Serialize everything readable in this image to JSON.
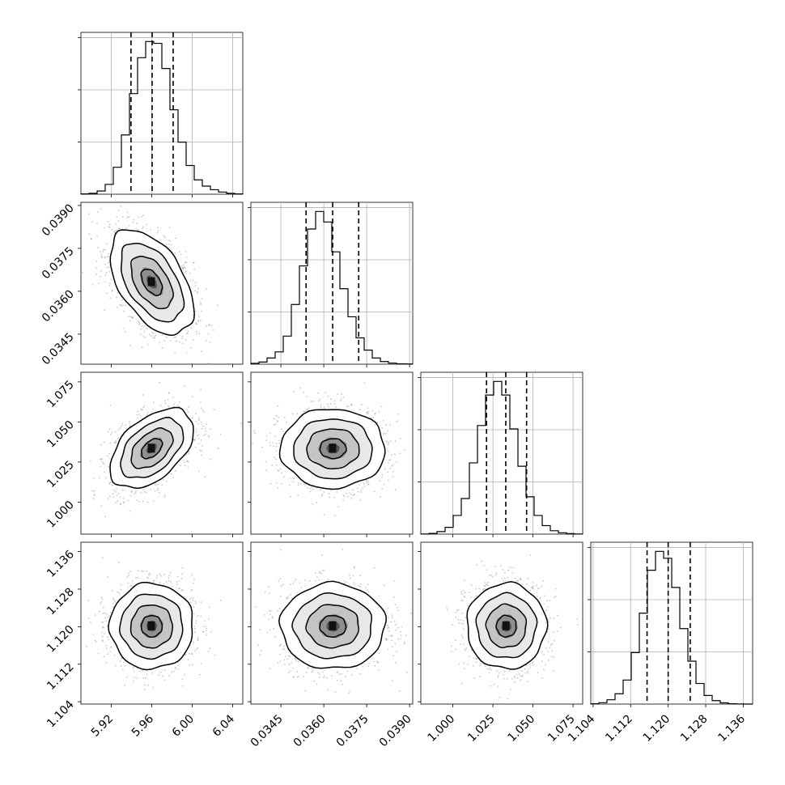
{
  "chart_data": {
    "type": "corner",
    "title": "",
    "parameters": [
      {
        "index": 0,
        "xlabel": "",
        "range": [
          5.89,
          6.05
        ],
        "ticks": [
          5.92,
          5.96,
          6.0,
          6.04
        ],
        "tick_labels": [
          "5.92",
          "5.96",
          "6.00",
          "6.04"
        ],
        "quantiles": [
          5.9395,
          5.9604,
          5.9812
        ]
      },
      {
        "index": 1,
        "xlabel": "",
        "range": [
          0.03345,
          0.03911
        ],
        "ticks": [
          0.0345,
          0.036,
          0.0375,
          0.039
        ],
        "tick_labels": [
          "0.0345",
          "0.0360",
          "0.0375",
          "0.0390"
        ],
        "quantiles": [
          0.03538,
          0.03631,
          0.03722
        ]
      },
      {
        "index": 2,
        "xlabel": "",
        "range": [
          0.98,
          1.081
        ],
        "ticks": [
          1.0,
          1.025,
          1.05,
          1.075
        ],
        "tick_labels": [
          "1.000",
          "1.025",
          "1.050",
          "1.075"
        ],
        "quantiles": [
          1.021,
          1.033,
          1.046
        ]
      },
      {
        "index": 3,
        "xlabel": "",
        "range": [
          1.1035,
          1.138
        ],
        "ticks": [
          1.104,
          1.112,
          1.12,
          1.128,
          1.136
        ],
        "tick_labels": [
          "1.104",
          "1.112",
          "1.120",
          "1.128",
          "1.136"
        ],
        "quantiles": [
          1.1155,
          1.12,
          1.1247
        ]
      }
    ],
    "histograms": [
      {
        "param": 0,
        "counts": [
          2,
          5,
          18,
          55,
          150,
          330,
          560,
          760,
          850,
          840,
          700,
          470,
          290,
          160,
          80,
          45,
          25,
          12,
          5,
          2
        ]
      },
      {
        "param": 1,
        "counts": [
          5,
          12,
          35,
          70,
          160,
          340,
          560,
          770,
          870,
          810,
          640,
          430,
          270,
          150,
          80,
          35,
          15,
          6,
          2,
          1
        ]
      },
      {
        "param": 2,
        "counts": [
          1,
          4,
          15,
          40,
          110,
          210,
          420,
          640,
          820,
          900,
          820,
          620,
          400,
          220,
          110,
          50,
          20,
          8,
          3,
          1
        ]
      },
      {
        "param": 3,
        "counts": [
          2,
          8,
          25,
          60,
          140,
          300,
          530,
          780,
          890,
          850,
          680,
          440,
          250,
          120,
          50,
          20,
          7,
          2,
          1,
          0
        ]
      }
    ],
    "panels_2d": [
      {
        "x": 0,
        "y": 1,
        "x_mean": 5.96,
        "y_mean": 0.03632,
        "x_sd": 0.0206,
        "y_sd": 0.000915,
        "corr": -0.5
      },
      {
        "x": 0,
        "y": 2,
        "x_mean": 5.96,
        "y_mean": 1.0334,
        "x_sd": 0.0206,
        "y_sd": 0.0124,
        "corr": 0.48
      },
      {
        "x": 1,
        "y": 2,
        "x_mean": 0.03632,
        "y_mean": 1.0334,
        "x_sd": 0.000915,
        "y_sd": 0.0124,
        "corr": 0.0
      },
      {
        "x": 0,
        "y": 3,
        "x_mean": 5.96,
        "y_mean": 1.1201,
        "x_sd": 0.0206,
        "y_sd": 0.00457,
        "corr": 0.0
      },
      {
        "x": 1,
        "y": 3,
        "x_mean": 0.03632,
        "y_mean": 1.1201,
        "x_sd": 0.000915,
        "y_sd": 0.00457,
        "corr": 0.0
      },
      {
        "x": 2,
        "y": 3,
        "x_mean": 1.0334,
        "y_mean": 1.1201,
        "x_sd": 0.0124,
        "y_sd": 0.00457,
        "corr": 0.0
      }
    ],
    "contour_levels_sigma": [
      0.5,
      1.0,
      1.5,
      2.0
    ],
    "histogram_gridlines": 3,
    "grid": true,
    "legend": "none"
  }
}
